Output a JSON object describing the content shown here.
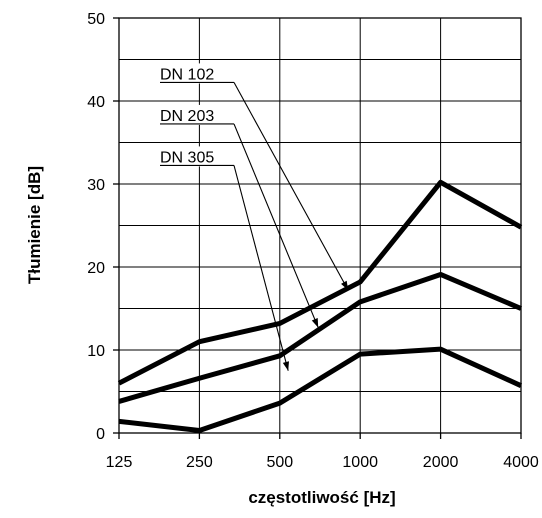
{
  "chart_data": {
    "type": "line",
    "xlabel": "częstotliwość [Hz]",
    "ylabel": "Tłumienie [dB]",
    "x": [
      "125",
      "250",
      "500",
      "1000",
      "2000",
      "4000"
    ],
    "ylim": [
      0,
      50
    ],
    "yticks": [
      "0",
      "10",
      "20",
      "30",
      "40",
      "50"
    ],
    "grid": true,
    "legend_placement": "top-left, inside plot with leader arrows",
    "series": [
      {
        "name": "DN 102",
        "values": [
          6,
          11,
          13.2,
          18.2,
          30.2,
          24.8
        ],
        "arrow_to_x": "1000",
        "arrow_to_y": 17.2
      },
      {
        "name": "DN 203",
        "values": [
          3.8,
          6.6,
          9.3,
          15.8,
          19.1,
          15
        ],
        "arrow_to_x": "1000",
        "arrow_to_y": 12.7
      },
      {
        "name": "DN 305",
        "values": [
          1.4,
          0.3,
          3.6,
          9.5,
          10.1,
          5.7
        ],
        "arrow_to_x": "1000",
        "arrow_to_y": 7.5
      }
    ],
    "series_color": "#000000"
  }
}
